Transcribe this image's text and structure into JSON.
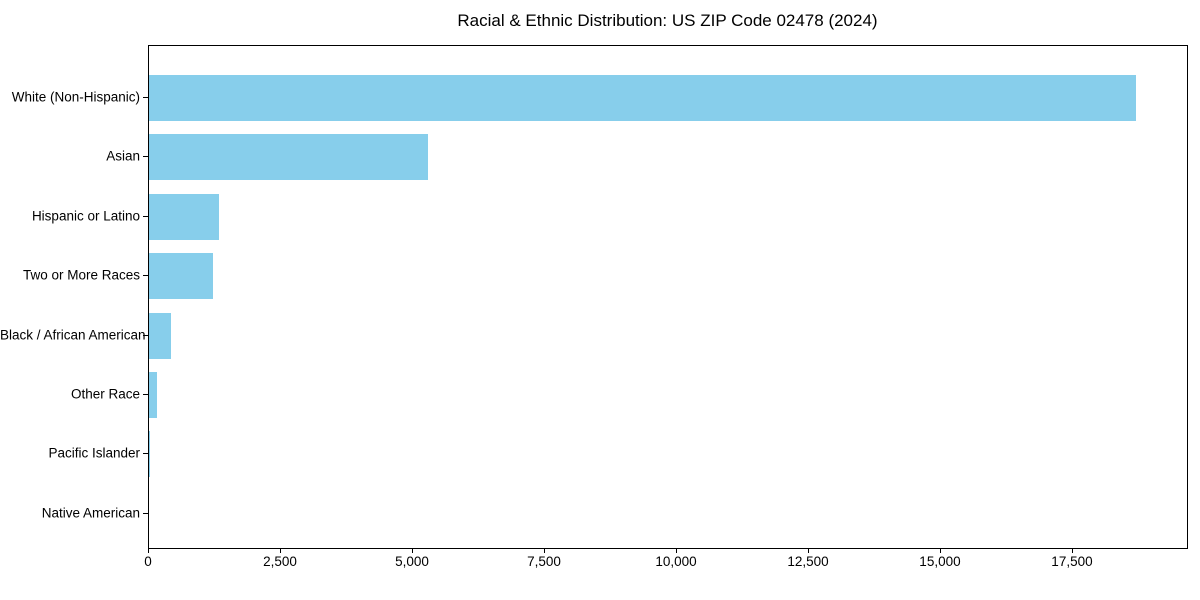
{
  "chart_data": {
    "type": "bar",
    "orientation": "horizontal",
    "title": "Racial & Ethnic Distribution: US ZIP Code 02478 (2024)",
    "categories": [
      "White (Non-Hispanic)",
      "Asian",
      "Hispanic or Latino",
      "Two or More Races",
      "Black / African American",
      "Other Race",
      "Pacific Islander",
      "Native American"
    ],
    "values": [
      18690,
      5280,
      1330,
      1210,
      420,
      160,
      10,
      0
    ],
    "xlabel": "",
    "ylabel": "",
    "xlim": [
      0,
      19660
    ],
    "xticks": [
      0,
      2500,
      5000,
      7500,
      10000,
      12500,
      15000,
      17500
    ],
    "xtick_labels": [
      "0",
      "2,500",
      "5,000",
      "7,500",
      "10,000",
      "12,500",
      "15,000",
      "17,500"
    ],
    "bar_color": "#87CEEB",
    "grid": false,
    "legend": "none",
    "plot_border": "full-box"
  }
}
